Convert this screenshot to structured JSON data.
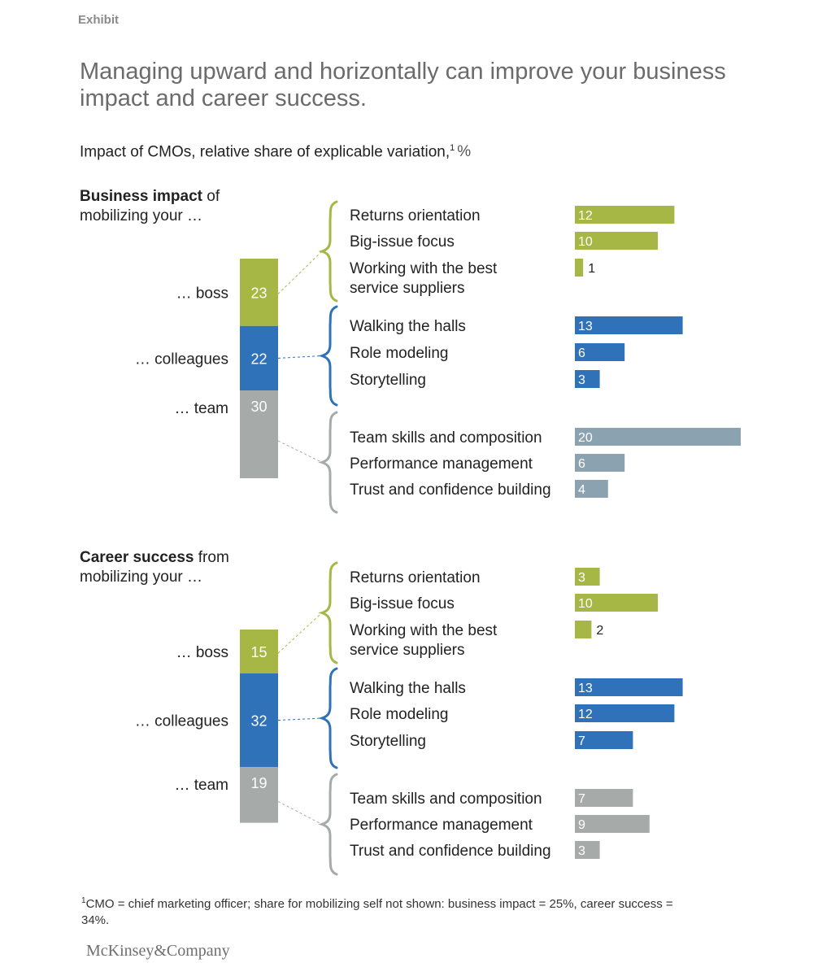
{
  "header": {
    "exhibit": "Exhibit",
    "title": "Managing upward and horizontally can improve your business impact and career success.",
    "subtitle": "Impact of CMOs, relative share of explicable variation,",
    "subtitle_sup": "1",
    "subtitle_unit": "%"
  },
  "colors": {
    "boss": "#a6b746",
    "colleagues": "#2f72b9",
    "team_stack": "#a6aaa8",
    "team_bars_top": "#8ba3b0",
    "team_bars_bottom": "#a6aaa8",
    "text": "#222222"
  },
  "chart_data": [
    {
      "type": "bar",
      "heading_bold": "Business impact",
      "heading_rest": " of",
      "heading_line2": "mobilizing your …",
      "stack": [
        {
          "label": "… boss",
          "value": 23
        },
        {
          "label": "… colleagues",
          "value": 22
        },
        {
          "label": "… team",
          "value": 30
        }
      ],
      "groups": [
        {
          "name": "boss",
          "items": [
            {
              "label": [
                "Returns orientation"
              ],
              "value": 12
            },
            {
              "label": [
                "Big-issue focus"
              ],
              "value": 10
            },
            {
              "label": [
                "Working with the best",
                "service suppliers"
              ],
              "value": 1
            }
          ]
        },
        {
          "name": "colleagues",
          "items": [
            {
              "label": [
                "Walking the halls"
              ],
              "value": 13
            },
            {
              "label": [
                "Role modeling"
              ],
              "value": 6
            },
            {
              "label": [
                "Storytelling"
              ],
              "value": 3
            }
          ]
        },
        {
          "name": "team",
          "items": [
            {
              "label": [
                "Team skills and composition"
              ],
              "value": 20
            },
            {
              "label": [
                "Performance management"
              ],
              "value": 6
            },
            {
              "label": [
                "Trust and confidence building"
              ],
              "value": 4
            }
          ]
        }
      ]
    },
    {
      "type": "bar",
      "heading_bold": "Career success",
      "heading_rest": " from",
      "heading_line2": "mobilizing your …",
      "stack": [
        {
          "label": "… boss",
          "value": 15
        },
        {
          "label": "… colleagues",
          "value": 32
        },
        {
          "label": "… team",
          "value": 19
        }
      ],
      "groups": [
        {
          "name": "boss",
          "items": [
            {
              "label": [
                "Returns orientation"
              ],
              "value": 3
            },
            {
              "label": [
                "Big-issue focus"
              ],
              "value": 10
            },
            {
              "label": [
                "Working with the best",
                "service suppliers"
              ],
              "value": 2
            }
          ]
        },
        {
          "name": "colleagues",
          "items": [
            {
              "label": [
                "Walking the halls"
              ],
              "value": 13
            },
            {
              "label": [
                "Role modeling"
              ],
              "value": 12
            },
            {
              "label": [
                "Storytelling"
              ],
              "value": 7
            }
          ]
        },
        {
          "name": "team",
          "items": [
            {
              "label": [
                "Team skills and composition"
              ],
              "value": 7
            },
            {
              "label": [
                "Performance management"
              ],
              "value": 9
            },
            {
              "label": [
                "Trust and confidence building"
              ],
              "value": 3
            }
          ]
        }
      ]
    }
  ],
  "footnote": {
    "sup": "1",
    "text": "CMO = chief marketing officer; share for mobilizing self not shown: business impact = 25%, career success = 34%."
  },
  "logo": "McKinsey&Company"
}
